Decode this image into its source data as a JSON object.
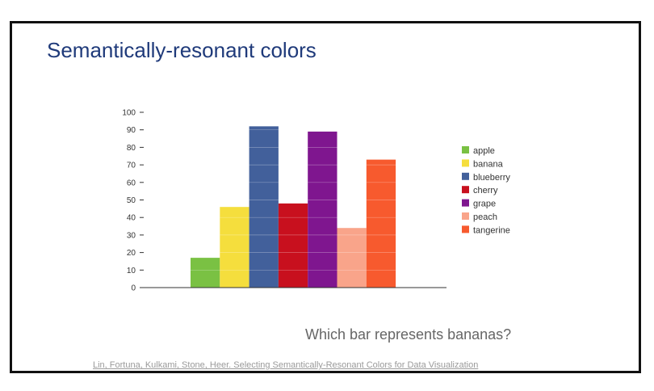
{
  "slide": {
    "title": "Semantically-resonant colors",
    "question": "Which bar represents bananas?",
    "citation": "Lin, Fortuna, Kulkami, Stone, Heer. Selecting Semantically-Resonant Colors for Data Visualization"
  },
  "chart_data": {
    "type": "bar",
    "title": "",
    "xlabel": "",
    "ylabel": "",
    "categories": [
      "apple",
      "banana",
      "blueberry",
      "cherry",
      "grape",
      "peach",
      "tangerine"
    ],
    "values": [
      17,
      46,
      92,
      48,
      89,
      34,
      73
    ],
    "colors": [
      "#7ac143",
      "#f5de3d",
      "#42609b",
      "#c8101e",
      "#7f168f",
      "#f9a48a",
      "#f75a2e"
    ],
    "ylim": [
      0,
      100
    ],
    "yticks": [
      "0",
      "10",
      "20",
      "30",
      "40",
      "50",
      "60",
      "70",
      "80",
      "90",
      "100"
    ],
    "grid": false,
    "legend_position": "right",
    "show_x_tick_labels": false
  }
}
